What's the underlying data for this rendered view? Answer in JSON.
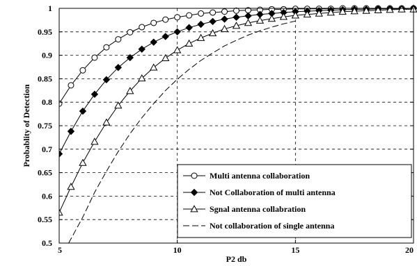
{
  "chart_data": {
    "type": "line",
    "title": "",
    "xlabel": "P2 db",
    "ylabel": "Probablity of Detection",
    "xlim": [
      5,
      20
    ],
    "ylim": [
      0.5,
      1.0
    ],
    "x_ticks": [
      "5",
      "10",
      "15",
      "20"
    ],
    "y_ticks": [
      "0.5",
      "0.55",
      "0.6",
      "0.65",
      "0.7",
      "0.75",
      "0.8",
      "0.85",
      "0.9",
      "0.95",
      "1"
    ],
    "grid": "dashed at major ticks",
    "legend_position": "bottom-right",
    "series": [
      {
        "name": "Multi antenna collaboration",
        "marker": "circle",
        "x": [
          5,
          5.5,
          6,
          6.5,
          7,
          7.5,
          8,
          8.5,
          9,
          9.5,
          10,
          10.5,
          11,
          11.5,
          12,
          12.5,
          13,
          13.5,
          14,
          14.5,
          15,
          15.5,
          16,
          16.5,
          17,
          17.5,
          18,
          18.5,
          19,
          19.5,
          20
        ],
        "y": [
          0.797,
          0.836,
          0.868,
          0.895,
          0.917,
          0.934,
          0.949,
          0.96,
          0.969,
          0.976,
          0.981,
          0.985,
          0.989,
          0.991,
          0.993,
          0.995,
          0.996,
          0.997,
          0.998,
          0.998,
          0.999,
          0.999,
          0.999,
          0.999,
          1.0,
          1.0,
          1.0,
          1.0,
          1.0,
          1.0,
          1.0
        ]
      },
      {
        "name": "Not Collaboration of multi antenna",
        "marker": "diamond",
        "x": [
          5,
          5.5,
          6,
          6.5,
          7,
          7.5,
          8,
          8.5,
          9,
          9.5,
          10,
          10.5,
          11,
          11.5,
          12,
          12.5,
          13,
          13.5,
          14,
          14.5,
          15,
          15.5,
          16,
          16.5,
          17,
          17.5,
          18,
          18.5,
          19,
          19.5,
          20
        ],
        "y": [
          0.69,
          0.738,
          0.781,
          0.817,
          0.848,
          0.874,
          0.895,
          0.913,
          0.928,
          0.94,
          0.95,
          0.959,
          0.966,
          0.972,
          0.977,
          0.981,
          0.984,
          0.987,
          0.989,
          0.991,
          0.993,
          0.994,
          0.995,
          0.996,
          0.997,
          0.998,
          0.998,
          0.999,
          0.999,
          0.999,
          1.0
        ]
      },
      {
        "name": "Sgnal antenna collabration",
        "marker": "triangle",
        "x": [
          5,
          5.5,
          6,
          6.5,
          7,
          7.5,
          8,
          8.5,
          9,
          9.5,
          10,
          10.5,
          11,
          11.5,
          12,
          12.5,
          13,
          13.5,
          14,
          14.5,
          15,
          15.5,
          16,
          16.5,
          17,
          17.5,
          18,
          18.5,
          19,
          19.5,
          20
        ],
        "y": [
          0.565,
          0.62,
          0.671,
          0.716,
          0.757,
          0.793,
          0.824,
          0.851,
          0.874,
          0.894,
          0.911,
          0.925,
          0.937,
          0.947,
          0.956,
          0.963,
          0.969,
          0.974,
          0.978,
          0.982,
          0.985,
          0.987,
          0.989,
          0.991,
          0.993,
          0.994,
          0.995,
          0.996,
          0.997,
          0.998,
          0.998
        ]
      },
      {
        "name": "Not collaboration of single antenna",
        "marker": "none",
        "x": [
          5.4,
          6,
          6.5,
          7,
          7.5,
          8,
          8.5,
          9,
          9.5,
          10,
          10.5,
          11,
          11.5,
          12,
          12.5,
          13,
          13.5,
          14,
          14.5,
          15
        ],
        "y": [
          0.5,
          0.555,
          0.608,
          0.653,
          0.695,
          0.733,
          0.767,
          0.797,
          0.825,
          0.849,
          0.87,
          0.889,
          0.905,
          0.92,
          0.932,
          0.943,
          0.952,
          0.96,
          0.967,
          0.973
        ]
      }
    ]
  }
}
